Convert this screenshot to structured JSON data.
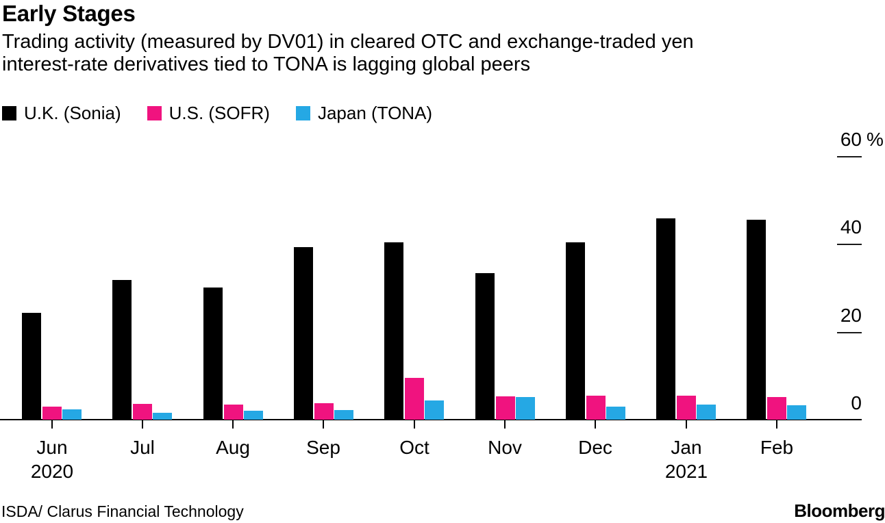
{
  "header": {
    "title": "Early Stages",
    "subtitle_lines": [
      "Trading activity (measured by DV01) in cleared OTC and exchange-traded yen",
      "interest-rate derivatives tied to TONA is lagging global peers"
    ]
  },
  "legend": {
    "items": [
      {
        "label": "U.K. (Sonia)",
        "color": "#000000"
      },
      {
        "label": "U.S. (SOFR)",
        "color": "#f0137f"
      },
      {
        "label": "Japan (TONA)",
        "color": "#25a8e4"
      }
    ]
  },
  "chart_data": {
    "type": "bar",
    "title": "Early Stages",
    "subtitle": "Trading activity (measured by DV01) in cleared OTC and exchange-traded yen interest-rate derivatives tied to TONA is lagging global peers",
    "categories": [
      "Jun",
      "Jul",
      "Aug",
      "Sep",
      "Oct",
      "Nov",
      "Dec",
      "Jan",
      "Feb"
    ],
    "year_labels": [
      {
        "index": 0,
        "label": "2020"
      },
      {
        "index": 7,
        "label": "2021"
      }
    ],
    "series": [
      {
        "name": "U.K. (Sonia)",
        "color": "#000000",
        "values": [
          24.3,
          31.7,
          30.1,
          39.2,
          40.4,
          33.4,
          40.4,
          45.8,
          45.5
        ]
      },
      {
        "name": "U.S. (SOFR)",
        "color": "#f0137f",
        "values": [
          2.9,
          3.6,
          3.5,
          3.7,
          9.5,
          5.3,
          5.4,
          5.4,
          5.1
        ]
      },
      {
        "name": "Japan (TONA)",
        "color": "#25a8e4",
        "values": [
          2.3,
          1.6,
          2.0,
          2.2,
          4.3,
          5.2,
          3.0,
          3.4,
          3.3
        ]
      }
    ],
    "yticks": [
      {
        "value": 60,
        "label": "60",
        "suffix": " %"
      },
      {
        "value": 40,
        "label": "40"
      },
      {
        "value": 20,
        "label": "20"
      },
      {
        "value": 0,
        "label": "0"
      }
    ],
    "ylim": [
      0,
      60
    ],
    "unit": "%",
    "grid": false,
    "legend_position": "top-left",
    "value_axis_side": "right"
  },
  "footer": {
    "source": "ISDA/ Clarus Financial Technology",
    "brand": "Bloomberg"
  }
}
